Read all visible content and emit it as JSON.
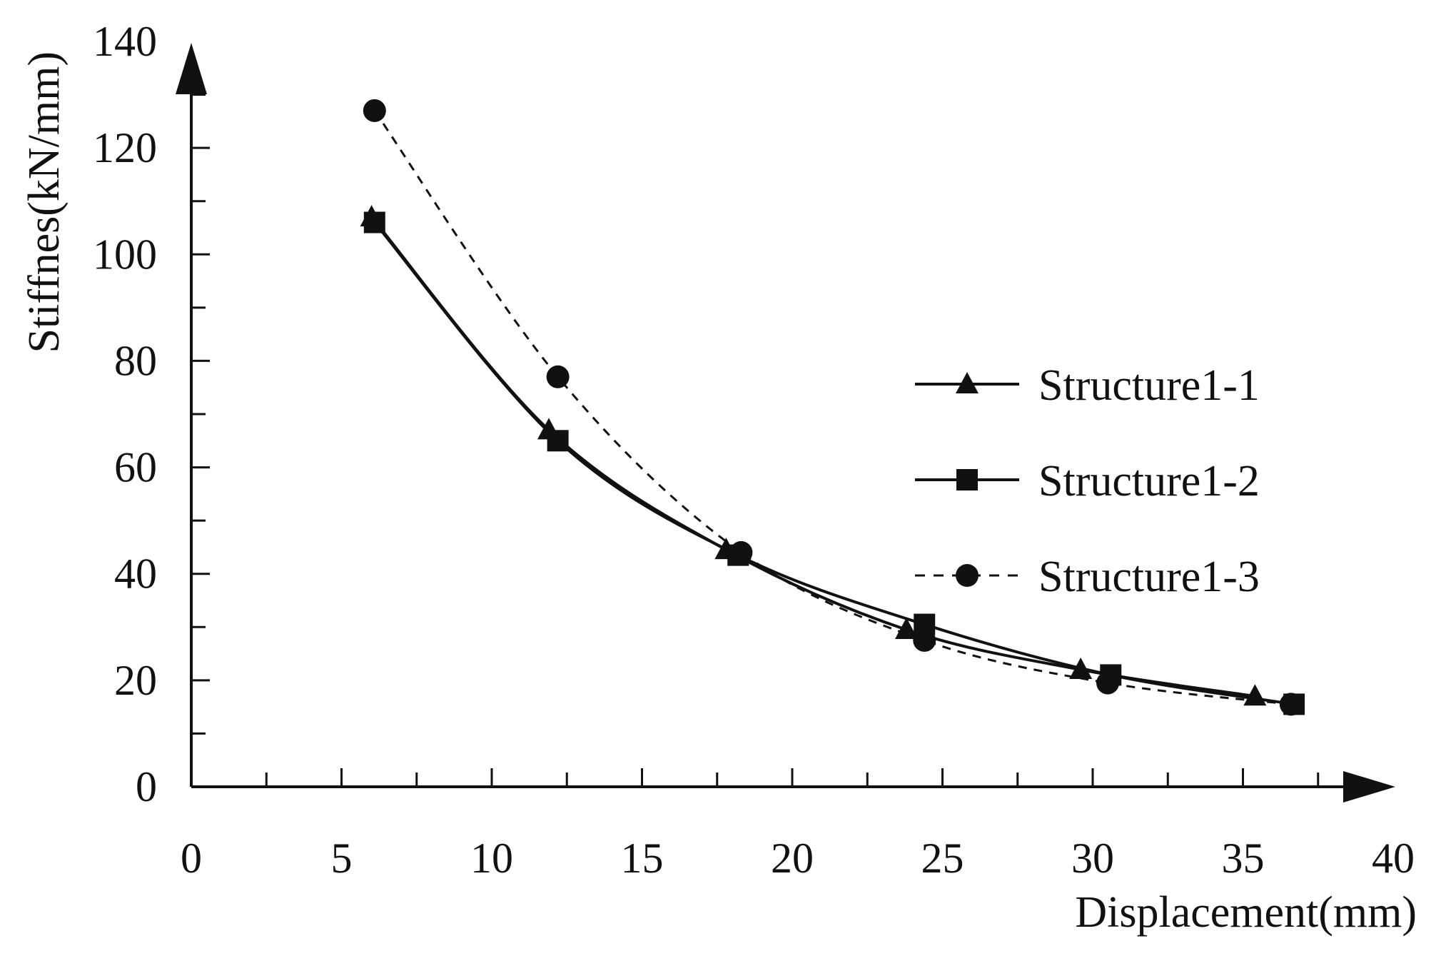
{
  "chart_data": {
    "type": "line",
    "title": "",
    "xlabel": "Displacement(mm)",
    "ylabel": "Stiffnes(kN/mm)",
    "xlim": [
      0,
      40
    ],
    "ylim": [
      0,
      140
    ],
    "x_ticks": [
      0,
      5,
      10,
      15,
      20,
      25,
      30,
      35,
      40
    ],
    "y_ticks": [
      0,
      20,
      40,
      60,
      80,
      100,
      120,
      140
    ],
    "grid": false,
    "legend_position": "right",
    "series": [
      {
        "name": "Structure1-1",
        "marker": "triangle",
        "line_style": "solid",
        "x": [
          6.0,
          11.9,
          17.8,
          23.8,
          29.6,
          35.4
        ],
        "y": [
          107,
          67,
          44.5,
          29.5,
          22,
          17
        ]
      },
      {
        "name": "Structure1-2",
        "marker": "square",
        "line_style": "solid",
        "x": [
          6.1,
          12.2,
          18.2,
          24.4,
          30.6,
          36.7
        ],
        "y": [
          106,
          65,
          43.5,
          30.5,
          21,
          15.5
        ]
      },
      {
        "name": "Structure1-3",
        "marker": "circle",
        "line_style": "dashed",
        "x": [
          6.1,
          12.2,
          18.3,
          24.4,
          30.5,
          36.6
        ],
        "y": [
          127,
          77,
          44,
          27.5,
          19.5,
          15.5
        ]
      }
    ]
  }
}
